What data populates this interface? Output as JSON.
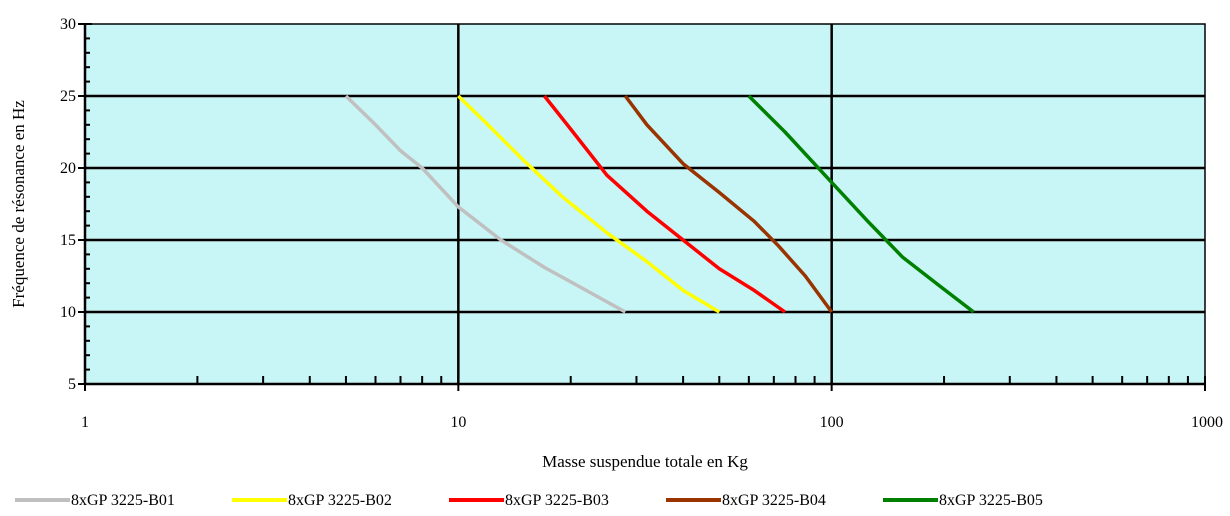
{
  "chart_data": {
    "type": "line",
    "title": "",
    "xlabel": "Masse suspendue totale en Kg",
    "ylabel": "Fréquence de résonance en Hz",
    "x_scale": "log",
    "xlim": [
      1,
      1000
    ],
    "ylim": [
      5,
      30
    ],
    "x_ticks": [
      1,
      10,
      100,
      1000
    ],
    "x_tick_labels": [
      "1",
      "10",
      "100",
      "1000"
    ],
    "y_ticks": [
      5,
      10,
      15,
      20,
      25,
      30
    ],
    "y_tick_labels": [
      "5",
      "10",
      "15",
      "20",
      "25",
      "30"
    ],
    "plot_background": "#c8f5f5",
    "grid": true,
    "legend_position": "bottom",
    "series": [
      {
        "name": "8xGP 3225-B01",
        "color": "#c0c0c0",
        "points": [
          [
            5,
            25
          ],
          [
            6,
            23
          ],
          [
            7,
            21.2
          ],
          [
            8,
            20
          ],
          [
            10,
            17.3
          ],
          [
            13,
            15
          ],
          [
            17,
            13.1
          ],
          [
            22,
            11.5
          ],
          [
            28,
            10
          ]
        ]
      },
      {
        "name": "8xGP 3225-B02",
        "color": "#ffff00",
        "points": [
          [
            10,
            25
          ],
          [
            12,
            23
          ],
          [
            15,
            20.5
          ],
          [
            19,
            18
          ],
          [
            25,
            15.5
          ],
          [
            32,
            13.5
          ],
          [
            40,
            11.5
          ],
          [
            50,
            10
          ]
        ]
      },
      {
        "name": "8xGP 3225-B03",
        "color": "#ff0000",
        "points": [
          [
            17,
            25
          ],
          [
            20,
            22.7
          ],
          [
            25,
            19.5
          ],
          [
            32,
            17
          ],
          [
            40,
            15
          ],
          [
            50,
            13
          ],
          [
            62,
            11.5
          ],
          [
            75,
            10
          ]
        ]
      },
      {
        "name": "8xGP 3225-B04",
        "color": "#993300",
        "points": [
          [
            28,
            25
          ],
          [
            32,
            23
          ],
          [
            40,
            20.3
          ],
          [
            50,
            18.3
          ],
          [
            62,
            16.3
          ],
          [
            72,
            14.6
          ],
          [
            85,
            12.5
          ],
          [
            100,
            10
          ]
        ]
      },
      {
        "name": "8xGP 3225-B05",
        "color": "#008000",
        "points": [
          [
            60,
            25
          ],
          [
            75,
            22.5
          ],
          [
            100,
            19
          ],
          [
            125,
            16.3
          ],
          [
            155,
            13.8
          ],
          [
            195,
            11.8
          ],
          [
            240,
            10
          ]
        ]
      }
    ]
  }
}
